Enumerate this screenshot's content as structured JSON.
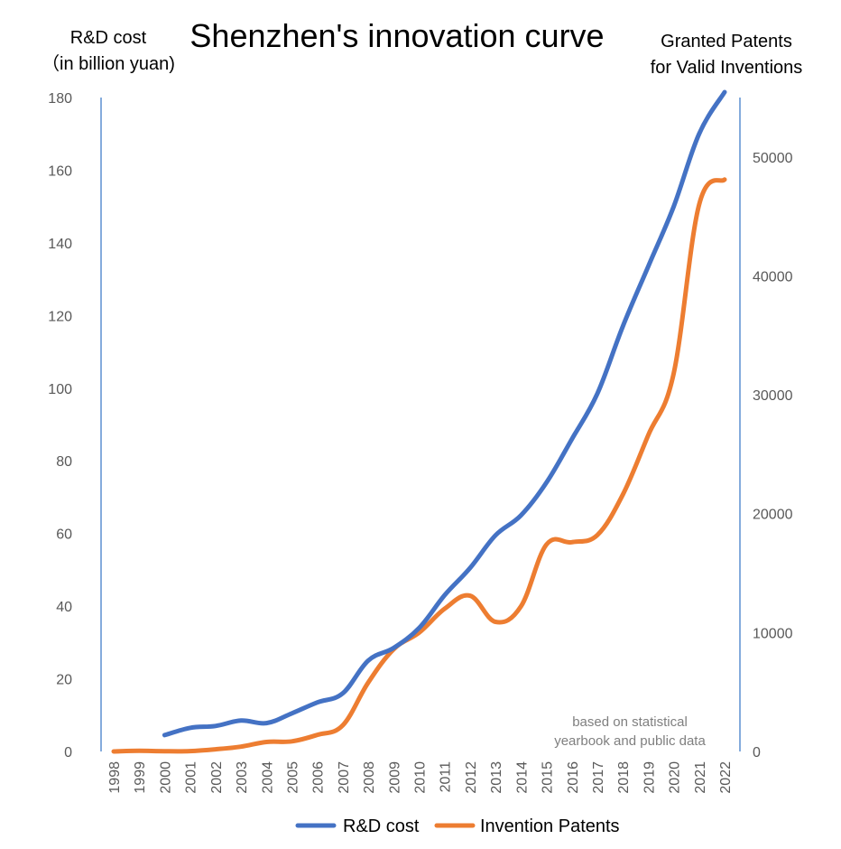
{
  "chart_data": {
    "type": "line",
    "title": "Shenzhen's innovation curve",
    "y_left_label_line1": "R&D cost",
    "y_left_label_line2": "（in billion yuan)",
    "y_right_label_line1": "Granted Patents",
    "y_right_label_line2": "for Valid Inventions",
    "note_line1": "based on statistical",
    "note_line2": "yearbook and public data",
    "y_left_lim": [
      0,
      180
    ],
    "y_left_ticks": [
      "0",
      "20",
      "40",
      "60",
      "80",
      "100",
      "120",
      "140",
      "160",
      "180"
    ],
    "y_right_lim": [
      0,
      55000
    ],
    "y_right_ticks": [
      "0",
      "10000",
      "20000",
      "30000",
      "40000",
      "50000"
    ],
    "categories": [
      "1998",
      "1999",
      "2000",
      "2001",
      "2002",
      "2003",
      "2004",
      "2005",
      "2006",
      "2007",
      "2008",
      "2009",
      "2010",
      "2011",
      "2012",
      "2013",
      "2014",
      "2015",
      "2016",
      "2017",
      "2018",
      "2019",
      "2020",
      "2021",
      "2022"
    ],
    "legend_position": "bottom",
    "series": [
      {
        "name": "R&D cost",
        "axis": "left",
        "color": "#4472c4",
        "values": [
          null,
          null,
          4.5,
          6.5,
          7,
          8.5,
          7.8,
          10.5,
          13.5,
          16,
          25,
          28.5,
          34,
          43,
          50.5,
          59.5,
          65,
          74,
          86,
          98.5,
          117,
          133.5,
          150,
          170,
          181.5
        ]
      },
      {
        "name": "Invention Patents",
        "axis": "right",
        "color": "#ed7d31",
        "values": [
          0,
          50,
          20,
          30,
          180,
          400,
          800,
          850,
          1400,
          2200,
          5800,
          8600,
          10000,
          12000,
          13100,
          10900,
          12200,
          17400,
          17600,
          18200,
          21600,
          26600,
          31800,
          46000,
          48100
        ]
      }
    ]
  }
}
